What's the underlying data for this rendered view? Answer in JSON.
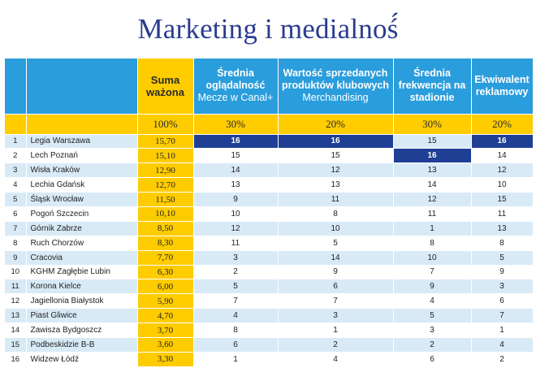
{
  "page": {
    "title": "Marketing i medialnoś́"
  },
  "table": {
    "headers": [
      {
        "id": "rank",
        "title": "",
        "subtitle": ""
      },
      {
        "id": "club",
        "title": "",
        "subtitle": ""
      },
      {
        "id": "sum",
        "title": "Suma ważona",
        "subtitle": ""
      },
      {
        "id": "tv",
        "title": "Średnia oglądalność",
        "subtitle": "Mecze w Canal+"
      },
      {
        "id": "merch",
        "title": "Wartość sprzedanych produktów klubowych",
        "subtitle": "Merchandising"
      },
      {
        "id": "att",
        "title": "Średnia frekwencja na stadionie",
        "subtitle": ""
      },
      {
        "id": "adv",
        "title": "Ekwiwalent reklamowy",
        "subtitle": ""
      }
    ],
    "weights": [
      "100%",
      "30%",
      "20%",
      "30%",
      "20%"
    ],
    "highlight_color": "#1f3f95",
    "rows": [
      {
        "rank": "1",
        "club": "Legia Warszawa",
        "sum": "15,70",
        "tv": "16",
        "merch": "16",
        "att": "15",
        "adv": "16",
        "highlight": [
          "tv",
          "merch",
          "adv"
        ]
      },
      {
        "rank": "2",
        "club": "Lech Poznań",
        "sum": "15,10",
        "tv": "15",
        "merch": "15",
        "att": "16",
        "adv": "14",
        "highlight": [
          "att"
        ]
      },
      {
        "rank": "3",
        "club": "Wisła Kraków",
        "sum": "12,90",
        "tv": "14",
        "merch": "12",
        "att": "13",
        "adv": "12",
        "highlight": []
      },
      {
        "rank": "4",
        "club": "Lechia Gdańsk",
        "sum": "12,70",
        "tv": "13",
        "merch": "13",
        "att": "14",
        "adv": "10",
        "highlight": []
      },
      {
        "rank": "5",
        "club": "Śląsk Wrocław",
        "sum": "11,50",
        "tv": "9",
        "merch": "11",
        "att": "12",
        "adv": "15",
        "highlight": []
      },
      {
        "rank": "6",
        "club": "Pogoń Szczecin",
        "sum": "10,10",
        "tv": "10",
        "merch": "8",
        "att": "11",
        "adv": "11",
        "highlight": []
      },
      {
        "rank": "7",
        "club": "Górnik Zabrze",
        "sum": "8,50",
        "tv": "12",
        "merch": "10",
        "att": "1",
        "adv": "13",
        "highlight": []
      },
      {
        "rank": "8",
        "club": "Ruch Chorzów",
        "sum": "8,30",
        "tv": "11",
        "merch": "5",
        "att": "8",
        "adv": "8",
        "highlight": []
      },
      {
        "rank": "9",
        "club": "Cracovia",
        "sum": "7,70",
        "tv": "3",
        "merch": "14",
        "att": "10",
        "adv": "5",
        "highlight": []
      },
      {
        "rank": "10",
        "club": "KGHM Zagłębie Lubin",
        "sum": "6,30",
        "tv": "2",
        "merch": "9",
        "att": "7",
        "adv": "9",
        "highlight": []
      },
      {
        "rank": "11",
        "club": "Korona Kielce",
        "sum": "6,00",
        "tv": "5",
        "merch": "6",
        "att": "9",
        "adv": "3",
        "highlight": []
      },
      {
        "rank": "12",
        "club": "Jagiellonia Białystok",
        "sum": "5,90",
        "tv": "7",
        "merch": "7",
        "att": "4",
        "adv": "6",
        "highlight": []
      },
      {
        "rank": "13",
        "club": "Piast Gliwice",
        "sum": "4,70",
        "tv": "4",
        "merch": "3",
        "att": "5",
        "adv": "7",
        "highlight": []
      },
      {
        "rank": "14",
        "club": "Zawisza Bydgoszcz",
        "sum": "3,70",
        "tv": "8",
        "merch": "1",
        "att": "3",
        "adv": "1",
        "highlight": []
      },
      {
        "rank": "15",
        "club": "Podbeskidzie B-B",
        "sum": "3,60",
        "tv": "6",
        "merch": "2",
        "att": "2",
        "adv": "4",
        "highlight": []
      },
      {
        "rank": "16",
        "club": "Widzew Łódź",
        "sum": "3,30",
        "tv": "1",
        "merch": "4",
        "att": "6",
        "adv": "2",
        "highlight": []
      }
    ]
  }
}
